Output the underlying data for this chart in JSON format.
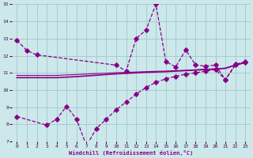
{
  "background_color": "#cce8ea",
  "grid_color": "#a0c8cc",
  "line_color": "#880088",
  "xlabel": "Windchill (Refroidissement éolien,°C)",
  "xlim": [
    -0.5,
    23.5
  ],
  "ylim": [
    7,
    15
  ],
  "yticks": [
    7,
    8,
    9,
    10,
    11,
    12,
    13,
    14,
    15
  ],
  "xticks": [
    0,
    1,
    2,
    3,
    4,
    5,
    6,
    7,
    8,
    9,
    10,
    11,
    12,
    13,
    14,
    15,
    16,
    17,
    18,
    19,
    20,
    21,
    22,
    23
  ],
  "line1_x": [
    0,
    1,
    2,
    10,
    11,
    12,
    13,
    14,
    15,
    16,
    17,
    18,
    19,
    20,
    21,
    22,
    23
  ],
  "line1_y": [
    12.9,
    12.3,
    12.05,
    11.45,
    11.1,
    13.0,
    13.5,
    15.0,
    11.65,
    11.35,
    12.35,
    11.45,
    11.4,
    11.45,
    10.6,
    11.5,
    11.65
  ],
  "line2a_x": [
    0,
    1,
    2,
    3,
    4,
    5,
    6,
    7,
    8,
    9,
    10,
    11,
    12,
    13,
    14,
    15,
    16,
    17,
    18,
    19,
    20,
    21,
    22,
    23
  ],
  "line2a_y": [
    10.72,
    10.72,
    10.72,
    10.72,
    10.72,
    10.75,
    10.78,
    10.82,
    10.86,
    10.9,
    10.94,
    10.97,
    11.0,
    11.03,
    11.05,
    11.07,
    11.1,
    11.13,
    11.16,
    11.19,
    11.22,
    11.26,
    11.45,
    11.6
  ],
  "line2b_x": [
    0,
    1,
    2,
    3,
    4,
    5,
    6,
    7,
    8,
    9,
    10,
    11,
    12,
    13,
    14,
    15,
    16,
    17,
    18,
    19,
    20,
    21,
    22,
    23
  ],
  "line2b_y": [
    10.85,
    10.85,
    10.85,
    10.85,
    10.85,
    10.88,
    10.9,
    10.93,
    10.96,
    10.98,
    11.01,
    11.03,
    11.05,
    11.07,
    11.09,
    11.1,
    11.13,
    11.15,
    11.18,
    11.21,
    11.24,
    11.28,
    11.47,
    11.62
  ],
  "line3_x": [
    0,
    3,
    4,
    5,
    6,
    7,
    8,
    9,
    10,
    11,
    12,
    13,
    14,
    15,
    16,
    17,
    18,
    19,
    20,
    21,
    22,
    23
  ],
  "line3_y": [
    8.45,
    7.95,
    8.3,
    9.05,
    8.3,
    6.75,
    7.75,
    8.3,
    8.85,
    9.3,
    9.75,
    10.15,
    10.45,
    10.65,
    10.8,
    10.92,
    11.0,
    11.1,
    11.2,
    10.6,
    11.45,
    11.6
  ]
}
